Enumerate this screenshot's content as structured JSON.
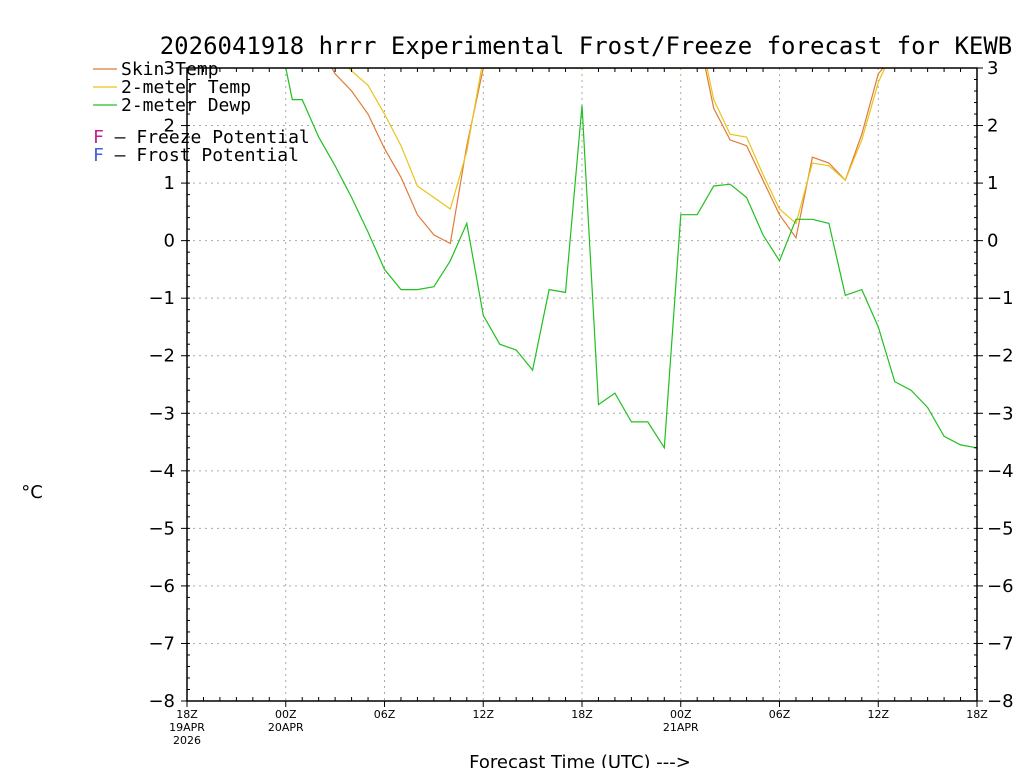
{
  "chart_data": {
    "type": "line",
    "title": "2026041918 hrrr Experimental Frost/Freeze forecast for KEWB",
    "ylabel": "°C",
    "xlabel": "Forecast Time (UTC) --->",
    "ylim": [
      -8,
      3
    ],
    "xlim": [
      0,
      48
    ],
    "grid": true,
    "y_ticks": [
      "−8",
      "−7",
      "−6",
      "−5",
      "−4",
      "−3",
      "−2",
      "−1",
      "0",
      "1",
      "2",
      "3"
    ],
    "x_ticks": [
      {
        "label": "18Z",
        "sub1": "19APR",
        "sub2": "2026"
      },
      {
        "label": "00Z",
        "sub1": "20APR",
        "sub2": ""
      },
      {
        "label": "06Z",
        "sub1": "",
        "sub2": ""
      },
      {
        "label": "12Z",
        "sub1": "",
        "sub2": ""
      },
      {
        "label": "18Z",
        "sub1": "",
        "sub2": ""
      },
      {
        "label": "00Z",
        "sub1": "21APR",
        "sub2": ""
      },
      {
        "label": "06Z",
        "sub1": "",
        "sub2": ""
      },
      {
        "label": "12Z",
        "sub1": "",
        "sub2": ""
      },
      {
        "label": "18Z",
        "sub1": "",
        "sub2": ""
      }
    ],
    "legend": [
      {
        "label": "Skin Temp",
        "color": "#e07b39"
      },
      {
        "label": "2-meter Temp",
        "color": "#e8c41a"
      },
      {
        "label": "2-meter Dewp",
        "color": "#20c020"
      }
    ],
    "annotations": [
      {
        "letter": "F",
        "text": " – Freeze Potential",
        "color": "#c02090"
      },
      {
        "letter": "F",
        "text": " – Frost Potential",
        "color": "#4060e0"
      }
    ],
    "series": [
      {
        "name": "Skin Temp",
        "color": "#e07b39",
        "x": [
          8.8,
          9,
          10,
          11,
          12,
          13,
          14,
          15,
          16,
          17,
          18,
          18.5,
          31.5,
          32,
          33,
          34,
          35,
          36,
          37,
          38,
          39,
          40,
          41,
          42,
          42.3
        ],
        "y": [
          3,
          2.9,
          2.6,
          2.2,
          1.6,
          1.1,
          0.45,
          0.1,
          -0.05,
          1.65,
          3,
          3,
          3,
          2.3,
          1.75,
          1.65,
          1.05,
          0.45,
          0.05,
          1.45,
          1.35,
          1.05,
          1.85,
          2.9,
          3
        ]
      },
      {
        "name": "2-meter Temp",
        "color": "#e8c41a",
        "x": [
          9.8,
          10,
          11,
          12,
          13,
          14,
          15,
          16,
          17,
          17.9,
          31.6,
          32,
          33,
          34,
          35,
          36,
          37,
          38,
          39,
          40,
          41,
          42,
          42.4
        ],
        "y": [
          3,
          2.95,
          2.7,
          2.2,
          1.65,
          0.95,
          0.75,
          0.55,
          1.55,
          3,
          3,
          2.45,
          1.85,
          1.8,
          1.15,
          0.55,
          0.3,
          1.35,
          1.3,
          1.05,
          1.75,
          2.75,
          3
        ]
      },
      {
        "name": "2-meter Dewp",
        "color": "#20c020",
        "x": [
          6,
          6.4,
          7,
          8,
          9,
          10,
          11,
          12,
          13,
          14,
          15,
          16,
          17,
          18,
          19,
          20,
          21,
          22,
          23,
          24,
          25,
          26,
          27,
          28,
          29,
          30,
          31,
          32,
          33,
          34,
          35,
          36,
          37,
          38,
          39,
          40,
          41,
          42,
          43,
          44,
          45,
          46,
          47,
          48
        ],
        "y": [
          3,
          2.45,
          2.45,
          1.8,
          1.3,
          0.75,
          0.15,
          -0.5,
          -0.85,
          -0.85,
          -0.8,
          -0.35,
          0.3,
          -1.3,
          -1.8,
          -1.9,
          -2.25,
          -0.85,
          -0.9,
          2.35,
          -2.85,
          -2.65,
          -3.15,
          -3.15,
          -3.6,
          0.45,
          0.45,
          0.95,
          0.98,
          0.75,
          0.1,
          -0.35,
          0.37,
          0.37,
          0.3,
          -0.95,
          -0.85,
          -1.5,
          -2.45,
          -2.6,
          -2.9,
          -3.4,
          -3.55,
          -3.6
        ]
      }
    ]
  }
}
